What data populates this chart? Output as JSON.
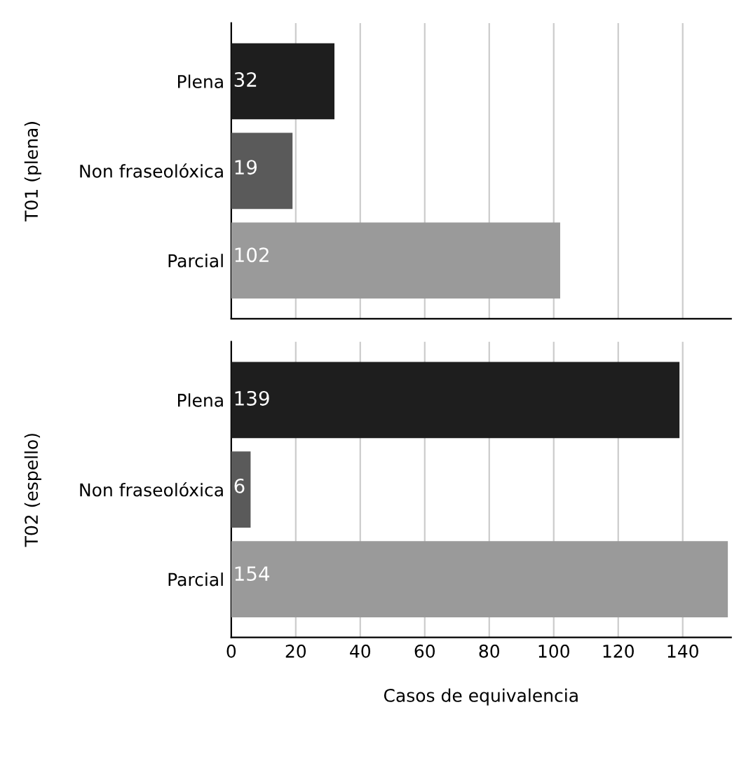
{
  "chart_data": [
    {
      "type": "bar",
      "orientation": "horizontal",
      "ylabel": "T01 (plena)",
      "categories": [
        "Plena",
        "Non fraseolóxica",
        "Parcial"
      ],
      "values": [
        32,
        19,
        102
      ],
      "colors": [
        "#1e1e1e",
        "#5a5a5a",
        "#9a9a9a"
      ],
      "xlim": [
        0,
        155
      ],
      "xticks": [
        0,
        20,
        40,
        60,
        80,
        100,
        120,
        140
      ],
      "grid": "x",
      "data_labels": true,
      "tick_labels": "y"
    },
    {
      "type": "bar",
      "orientation": "horizontal",
      "ylabel": "T02 (espello)",
      "xlabel": "Casos de equivalencia",
      "categories": [
        "Plena",
        "Non fraseolóxica",
        "Parcial"
      ],
      "values": [
        139,
        6,
        154
      ],
      "colors": [
        "#1e1e1e",
        "#5a5a5a",
        "#9a9a9a"
      ],
      "xlim": [
        0,
        155
      ],
      "xticks": [
        0,
        20,
        40,
        60,
        80,
        100,
        120,
        140
      ],
      "grid": "x",
      "data_labels": true
    }
  ]
}
